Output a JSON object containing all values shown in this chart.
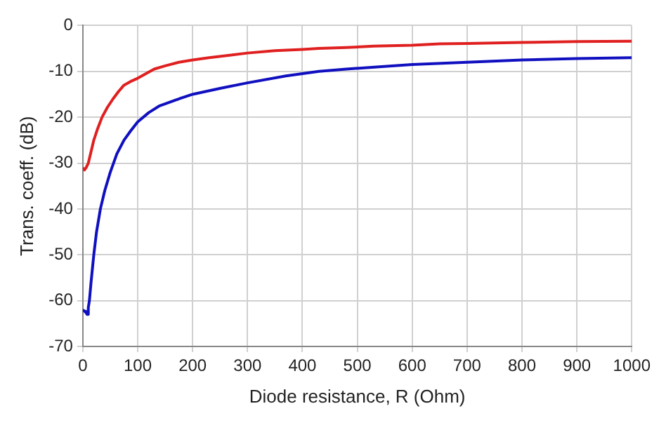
{
  "chart_data": {
    "type": "line",
    "xlabel": "Diode resistance, R (Ohm)",
    "ylabel": "Trans. coeff. (dB)",
    "xlim": [
      0,
      1000
    ],
    "xticks": [
      0,
      100,
      200,
      300,
      400,
      500,
      600,
      700,
      800,
      900,
      1000
    ],
    "ylim": [
      -70,
      0
    ],
    "yticks": [
      -70,
      -60,
      -50,
      -40,
      -30,
      -20,
      -10,
      0
    ],
    "grid": true,
    "legend": false,
    "marker": "none",
    "line_style": "solid",
    "series": [
      {
        "color": "#e02020",
        "x": [
          0,
          3,
          6,
          10,
          15,
          20,
          27,
          35,
          45,
          55,
          65,
          75,
          87,
          100,
          115,
          130,
          150,
          175,
          200,
          230,
          265,
          300,
          350,
          400,
          430,
          480,
          530,
          600,
          650,
          700,
          800,
          900,
          1000
        ],
        "values": [
          -31,
          -31.5,
          -31,
          -30,
          -27.5,
          -25,
          -22.5,
          -20,
          -17.8,
          -16,
          -14.4,
          -13,
          -12.2,
          -11.5,
          -10.5,
          -9.5,
          -8.8,
          -8,
          -7.5,
          -7,
          -6.5,
          -6,
          -5.5,
          -5.2,
          -5,
          -4.8,
          -4.5,
          -4.3,
          -4,
          -3.9,
          -3.7,
          -3.5,
          -3.4
        ]
      },
      {
        "color": "#1010c0",
        "x": [
          0,
          3,
          5,
          8,
          10,
          12,
          15,
          20,
          25,
          32,
          40,
          50,
          62,
          75,
          87,
          100,
          120,
          140,
          170,
          200,
          250,
          300,
          370,
          430,
          480,
          540,
          600,
          700,
          800,
          900,
          1000
        ],
        "values": [
          -62,
          -62.3,
          -62.5,
          -63,
          -61.5,
          -60,
          -56,
          -50,
          -45,
          -40,
          -36,
          -32,
          -28,
          -25,
          -23,
          -21,
          -19,
          -17.5,
          -16.2,
          -15,
          -13.7,
          -12.5,
          -11,
          -10,
          -9.5,
          -9,
          -8.5,
          -8,
          -7.5,
          -7.2,
          -7
        ]
      }
    ]
  }
}
